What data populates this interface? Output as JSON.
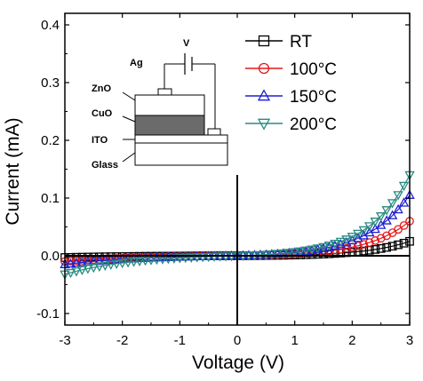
{
  "chart_data": {
    "type": "scatter",
    "xlabel": "Voltage (V)",
    "ylabel": "Current (mA)",
    "xlim": [
      -3,
      3
    ],
    "ylim": [
      -0.12,
      0.42
    ],
    "xticks": [
      -3,
      -2,
      -1,
      0,
      1,
      2,
      3
    ],
    "yticks": [
      -0.1,
      0.0,
      0.1,
      0.2,
      0.3,
      0.4
    ],
    "ytick_labels": [
      "-0.1",
      "0.0",
      "0.1",
      "0.2",
      "0.3",
      "0.4"
    ],
    "legend_position": "top-right",
    "series": [
      {
        "name": "RT",
        "marker": "square",
        "color": "#000000",
        "dep": {
          "p0": 0.025,
          "v0": 0.75,
          "n0": 0.003,
          "vn": 1.5
        }
      },
      {
        "name": "100°C",
        "marker": "circle",
        "color": "#e41a1c",
        "dep": {
          "p0": 0.06,
          "v0": 0.75,
          "n0": 0.01,
          "vn": 1.4
        }
      },
      {
        "name": "150°C",
        "marker": "triangle-up",
        "color": "#1f1fd0",
        "dep": {
          "p0": 0.105,
          "v0": 0.75,
          "n0": 0.015,
          "vn": 1.3
        }
      },
      {
        "name": "200°C",
        "marker": "triangle-down",
        "color": "#2a8a82",
        "dep": {
          "p0": 0.14,
          "v0": 0.72,
          "n0": 0.032,
          "vn": 1.2
        }
      }
    ],
    "inset": {
      "labels": [
        "Ag",
        "V",
        "ZnO",
        "CuO",
        "ITO",
        "Glass"
      ]
    }
  }
}
